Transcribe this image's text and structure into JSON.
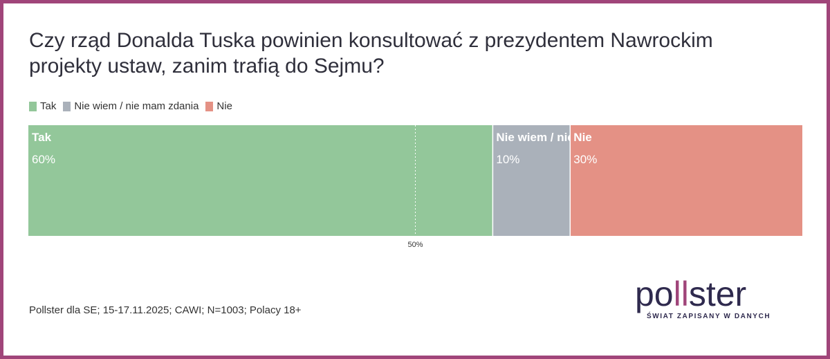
{
  "title": "Czy rząd Donalda Tuska powinien konsultować z prezydentem Nawrockim projekty ustaw, zanim trafią do Sejmu?",
  "legend": [
    {
      "label": "Tak",
      "color": "#93c79a"
    },
    {
      "label": "Nie wiem / nie mam zdania",
      "color": "#aab1ba"
    },
    {
      "label": "Nie",
      "color": "#e49185"
    }
  ],
  "chart_data": {
    "type": "bar",
    "orientation": "horizontal-stacked-100",
    "series": [
      {
        "name": "Tak",
        "short_label": "Tak",
        "value": 60,
        "value_label": "60%",
        "color": "#93c79a"
      },
      {
        "name": "Nie wiem / nie mam zdania",
        "short_label": "Nie wiem / nie mam zdania",
        "value": 10,
        "value_label": "10%",
        "color": "#aab1ba"
      },
      {
        "name": "Nie",
        "short_label": "Nie",
        "value": 30,
        "value_label": "30%",
        "color": "#e49185"
      }
    ],
    "reference_line": {
      "value": 50,
      "label": "50%"
    },
    "xlim": [
      0,
      100
    ]
  },
  "source_note": "Pollster dla SE; 15-17.11.2025; CAWI; N=1003; Polacy 18+",
  "logo": {
    "word_start": "po",
    "word_bars": "ll",
    "word_end": "ster",
    "tagline": "ŚWIAT ZAPISANY W DANYCH"
  }
}
